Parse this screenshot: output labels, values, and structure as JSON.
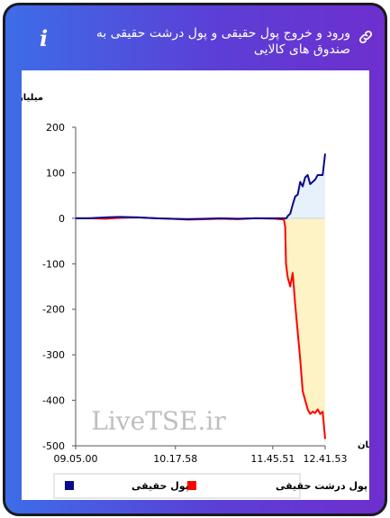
{
  "header": {
    "title": "ورود و خروج پول حقیقی و پول درشت حقیقی به صندوق های کالایی",
    "info_icon": "i",
    "link_icon": "link-icon"
  },
  "watermark": "LiveTSE.ir",
  "colors": {
    "series1": "#0a0a8c",
    "series2": "#ff0000",
    "fill1": "#e6f1fb",
    "fill2": "#fdf3c4"
  },
  "chart_data": {
    "type": "line",
    "ylabel": "میلیارد تومان",
    "xlabel": "زمان",
    "ylim": [
      -500,
      200
    ],
    "yticks": [
      200,
      100,
      0,
      -100,
      -200,
      -300,
      -400,
      -500
    ],
    "ytick_labels": [
      "200",
      "100",
      "0",
      "-100",
      "-200",
      "-300",
      "-400",
      "-500"
    ],
    "xticks": [
      "09.05.00",
      "10.17.58",
      "11.45.51",
      "12.41.53"
    ],
    "grid": false,
    "legend_position": "bottom",
    "series": [
      {
        "name": "پول حقیقی",
        "x": [
          0,
          0.05,
          0.12,
          0.18,
          0.25,
          0.32,
          0.38,
          0.45,
          0.52,
          0.58,
          0.65,
          0.72,
          0.8,
          0.845,
          0.85,
          0.86,
          0.87,
          0.88,
          0.89,
          0.9,
          0.91,
          0.92,
          0.93,
          0.94,
          0.95,
          0.96,
          0.97,
          0.98,
          0.99,
          1.0
        ],
        "y": [
          0,
          0,
          2,
          3,
          2,
          0,
          -1,
          -2,
          -1,
          0,
          -1,
          0,
          0,
          0,
          5,
          10,
          30,
          48,
          52,
          80,
          70,
          90,
          95,
          75,
          80,
          85,
          95,
          95,
          95,
          142
        ]
      },
      {
        "name": "پول درشت حقیقی",
        "x": [
          0,
          0.05,
          0.12,
          0.18,
          0.25,
          0.32,
          0.38,
          0.45,
          0.52,
          0.58,
          0.65,
          0.72,
          0.8,
          0.835,
          0.84,
          0.843,
          0.85,
          0.86,
          0.87,
          0.88,
          0.9,
          0.91,
          0.92,
          0.93,
          0.94,
          0.95,
          0.96,
          0.97,
          0.98,
          0.99,
          1.0
        ],
        "y": [
          0,
          0,
          -1,
          1,
          2,
          0,
          -1,
          -3,
          -2,
          -1,
          -2,
          0,
          -1,
          -3,
          -20,
          -100,
          -130,
          -150,
          -120,
          -190,
          -310,
          -380,
          -400,
          -420,
          -430,
          -425,
          -428,
          -420,
          -430,
          -425,
          -485
        ]
      }
    ]
  }
}
